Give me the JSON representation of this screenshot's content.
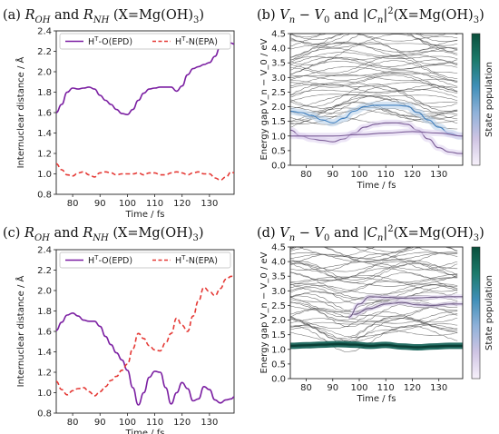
{
  "chart_data": [
    {
      "panel": "a",
      "type": "line",
      "title": "(a) R_OH and R_NH (X=Mg(OH)3)",
      "xlabel": "Time / fs",
      "ylabel": "Internuclear distance / Å",
      "xlim": [
        74,
        139
      ],
      "ylim": [
        0.8,
        2.4
      ],
      "xticks": [
        80,
        90,
        100,
        110,
        120,
        130
      ],
      "yticks": [
        0.8,
        1.0,
        1.2,
        1.4,
        1.6,
        1.8,
        2.0,
        2.2,
        2.4
      ],
      "legend": "top",
      "series": [
        {
          "name": "H^T-O(EPD)",
          "color": "#7b1fa2",
          "style": "solid",
          "x": [
            74,
            76,
            78,
            80,
            82,
            84,
            86,
            88,
            90,
            92,
            94,
            96,
            98,
            100,
            102,
            104,
            106,
            108,
            110,
            112,
            114,
            116,
            118,
            120,
            122,
            124,
            126,
            128,
            130,
            132,
            134,
            136,
            138,
            139
          ],
          "y": [
            1.6,
            1.68,
            1.8,
            1.84,
            1.83,
            1.84,
            1.85,
            1.83,
            1.77,
            1.72,
            1.68,
            1.63,
            1.59,
            1.58,
            1.63,
            1.72,
            1.79,
            1.83,
            1.84,
            1.85,
            1.85,
            1.85,
            1.81,
            1.86,
            1.97,
            2.03,
            2.05,
            2.07,
            2.09,
            2.15,
            2.25,
            2.3,
            2.28,
            2.27
          ]
        },
        {
          "name": "H^T-N(EPA)",
          "color": "#e53935",
          "style": "dashed",
          "x": [
            74,
            76,
            78,
            80,
            82,
            84,
            86,
            88,
            90,
            92,
            94,
            96,
            98,
            100,
            102,
            104,
            106,
            108,
            110,
            112,
            114,
            116,
            118,
            120,
            122,
            124,
            126,
            128,
            130,
            132,
            134,
            136,
            138,
            139
          ],
          "y": [
            1.1,
            1.04,
            0.99,
            0.98,
            1.01,
            1.02,
            0.99,
            0.97,
            1.01,
            1.02,
            1.01,
            0.99,
            1.0,
            1.0,
            1.0,
            1.01,
            0.99,
            1.01,
            1.01,
            0.99,
            0.99,
            1.01,
            1.02,
            1.01,
            0.99,
            1.01,
            1.02,
            1.0,
            1.0,
            0.96,
            0.94,
            0.97,
            1.02,
            1.01
          ]
        }
      ]
    },
    {
      "panel": "b",
      "type": "line",
      "title": "(b) V_n − V_0 and |C_n|^2 (X=Mg(OH)3)",
      "xlabel": "Time / fs",
      "ylabel": "Energy gap V_n − V_0 / eV",
      "colorbar_label": "State population",
      "colormap": [
        "#f7f1fb",
        "#cfc4e3",
        "#8fb1d9",
        "#3f8fb8",
        "#1b7a6b",
        "#0a4f3c"
      ],
      "xlim": [
        74,
        139
      ],
      "ylim": [
        0.0,
        4.5
      ],
      "xticks": [
        80,
        90,
        100,
        110,
        120,
        130
      ],
      "yticks": [
        0.0,
        0.5,
        1.0,
        1.5,
        2.0,
        2.5,
        3.0,
        3.5,
        4.0,
        4.5
      ],
      "populated_states": [
        {
          "x": [
            74,
            78,
            82,
            86,
            90,
            94,
            98,
            102,
            106,
            110,
            114,
            118,
            122,
            126,
            130,
            134,
            138,
            139
          ],
          "y": [
            1.85,
            1.8,
            1.7,
            1.55,
            1.45,
            1.6,
            1.85,
            2.0,
            2.05,
            2.05,
            2.05,
            2.02,
            1.8,
            1.55,
            1.3,
            1.1,
            1.0,
            1.0
          ]
        },
        {
          "x": [
            74,
            78,
            82,
            86,
            90,
            94,
            98,
            102,
            106,
            110,
            114,
            118,
            122,
            126,
            130,
            134,
            138,
            139
          ],
          "y": [
            1.2,
            1.0,
            0.9,
            0.85,
            0.8,
            0.9,
            1.1,
            1.3,
            1.4,
            1.45,
            1.45,
            1.4,
            1.2,
            0.9,
            0.6,
            0.45,
            0.4,
            0.4
          ]
        },
        {
          "x": [
            74,
            80,
            90,
            100,
            110,
            120,
            130,
            139
          ],
          "y": [
            1.0,
            1.0,
            1.0,
            1.05,
            1.1,
            1.15,
            1.1,
            1.0
          ]
        }
      ]
    },
    {
      "panel": "c",
      "type": "line",
      "title": "(c) R_OH and R_NH (X=Mg(OH)3)",
      "xlabel": "Time / fs",
      "ylabel": "Internuclear distance / Å",
      "xlim": [
        74,
        139
      ],
      "ylim": [
        0.8,
        2.4
      ],
      "xticks": [
        80,
        90,
        100,
        110,
        120,
        130
      ],
      "yticks": [
        0.8,
        1.0,
        1.2,
        1.4,
        1.6,
        1.8,
        2.0,
        2.2,
        2.4
      ],
      "legend": "top",
      "series": [
        {
          "name": "H^T-O(EPD)",
          "color": "#7b1fa2",
          "style": "solid",
          "x": [
            74,
            76,
            78,
            80,
            82,
            84,
            86,
            88,
            90,
            92,
            94,
            96,
            98,
            100,
            102,
            104,
            106,
            108,
            110,
            112,
            114,
            116,
            118,
            120,
            122,
            124,
            126,
            128,
            130,
            132,
            134,
            136,
            138,
            139
          ],
          "y": [
            1.61,
            1.69,
            1.76,
            1.78,
            1.75,
            1.71,
            1.7,
            1.7,
            1.65,
            1.55,
            1.47,
            1.39,
            1.32,
            1.22,
            1.05,
            0.88,
            1.0,
            1.15,
            1.21,
            1.2,
            1.05,
            0.89,
            1.0,
            1.1,
            1.04,
            0.92,
            0.94,
            1.06,
            1.03,
            0.93,
            0.9,
            0.93,
            0.94,
            0.96
          ]
        },
        {
          "name": "H^T-N(EPA)",
          "color": "#e53935",
          "style": "dashed",
          "x": [
            74,
            76,
            78,
            80,
            82,
            84,
            86,
            88,
            90,
            92,
            94,
            96,
            98,
            100,
            102,
            104,
            106,
            108,
            110,
            112,
            114,
            116,
            118,
            120,
            122,
            124,
            126,
            128,
            130,
            132,
            134,
            136,
            138,
            139
          ],
          "y": [
            1.11,
            1.03,
            0.98,
            1.02,
            1.04,
            1.05,
            1.01,
            0.97,
            1.01,
            1.06,
            1.12,
            1.16,
            1.22,
            1.28,
            1.43,
            1.58,
            1.53,
            1.46,
            1.42,
            1.41,
            1.49,
            1.58,
            1.73,
            1.66,
            1.6,
            1.75,
            1.9,
            2.03,
            1.99,
            1.95,
            2.02,
            2.11,
            2.14,
            2.13
          ]
        }
      ]
    },
    {
      "panel": "d",
      "type": "line",
      "title": "(d) V_n − V_0 and |C_n|^2 (X=Mg(OH)3)",
      "xlabel": "Time / fs",
      "ylabel": "Energy gap V_n − V_0 / eV",
      "colorbar_label": "State population",
      "colormap": [
        "#f7f1fb",
        "#cfc4e3",
        "#8fb1d9",
        "#3f8fb8",
        "#1b7a6b",
        "#0a4f3c"
      ],
      "xlim": [
        74,
        139
      ],
      "ylim": [
        0.0,
        4.5
      ],
      "xticks": [
        80,
        90,
        100,
        110,
        120,
        130
      ],
      "yticks": [
        0.0,
        0.5,
        1.0,
        1.5,
        2.0,
        2.5,
        3.0,
        3.5,
        4.0,
        4.5
      ],
      "populated_states": [
        {
          "x": [
            74,
            80,
            86,
            92,
            98,
            104,
            110,
            116,
            122,
            128,
            134,
            139
          ],
          "y": [
            1.12,
            1.14,
            1.16,
            1.18,
            1.16,
            1.12,
            1.15,
            1.1,
            1.07,
            1.1,
            1.12,
            1.12
          ]
        },
        {
          "x": [
            96,
            100,
            104,
            110,
            116,
            122,
            128,
            134,
            139
          ],
          "y": [
            2.1,
            2.55,
            2.8,
            2.78,
            2.75,
            2.76,
            2.78,
            2.8,
            2.8
          ]
        },
        {
          "x": [
            98,
            104,
            110,
            116,
            122,
            128,
            134,
            139
          ],
          "y": [
            2.2,
            2.4,
            2.55,
            2.6,
            2.52,
            2.5,
            2.55,
            2.55
          ]
        }
      ]
    }
  ]
}
